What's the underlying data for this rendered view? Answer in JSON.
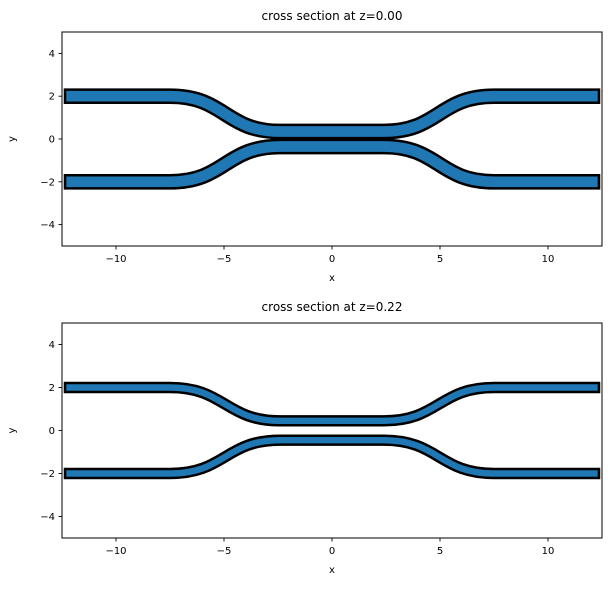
{
  "figure": {
    "background": "#ffffff",
    "text_color": "#000000",
    "spine_color": "#000000"
  },
  "chart_data": [
    {
      "type": "area",
      "title": "cross section at z=0.00",
      "xlabel": "x",
      "ylabel": "y",
      "xlim": [
        -12.5,
        12.5
      ],
      "ylim": [
        -5,
        5
      ],
      "xticks": [
        -10,
        -5,
        0,
        5,
        10
      ],
      "yticks": [
        -4,
        -2,
        0,
        2,
        4
      ],
      "grid": false,
      "legend": null,
      "series_style": {
        "fill": "#1f77b4",
        "edge": "#000000"
      },
      "geometry": {
        "kind": "directional-coupler-cross-section",
        "strip_width": 0.5,
        "x_span": [
          -12.3,
          12.3
        ],
        "sbend_inner_x": 2.4,
        "sbend_outer_x": 7.5,
        "waveguides": [
          {
            "name": "top-waveguide",
            "y_outer": 2.0,
            "y_inner": 0.35
          },
          {
            "name": "bottom-waveguide",
            "y_outer": -2.0,
            "y_inner": -0.35
          }
        ]
      }
    },
    {
      "type": "area",
      "title": "cross section at z=0.22",
      "xlabel": "x",
      "ylabel": "y",
      "xlim": [
        -12.5,
        12.5
      ],
      "ylim": [
        -5,
        5
      ],
      "xticks": [
        -10,
        -5,
        0,
        5,
        10
      ],
      "yticks": [
        -4,
        -2,
        0,
        2,
        4
      ],
      "grid": false,
      "legend": null,
      "series_style": {
        "fill": "#1f77b4",
        "edge": "#000000"
      },
      "geometry": {
        "kind": "directional-coupler-cross-section",
        "strip_width": 0.3,
        "x_span": [
          -12.3,
          12.3
        ],
        "sbend_inner_x": 2.4,
        "sbend_outer_x": 7.5,
        "waveguides": [
          {
            "name": "top-waveguide",
            "y_outer": 2.0,
            "y_inner": 0.45
          },
          {
            "name": "bottom-waveguide",
            "y_outer": -2.0,
            "y_inner": -0.45
          }
        ]
      }
    }
  ]
}
